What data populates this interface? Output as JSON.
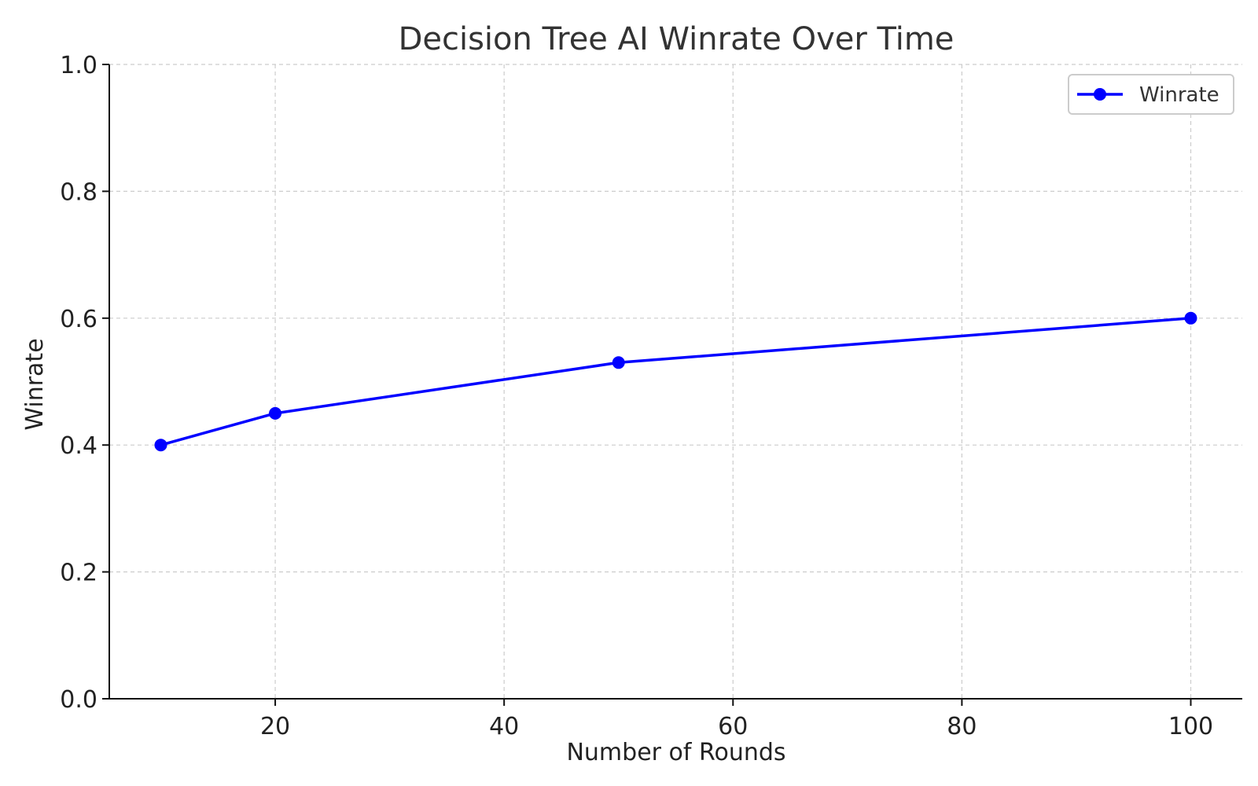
{
  "chart_data": {
    "type": "line",
    "title": "Decision Tree AI Winrate Over Time",
    "xlabel": "Number of Rounds",
    "ylabel": "Winrate",
    "xlim": [
      5.5,
      104.5
    ],
    "ylim": [
      0.0,
      1.0
    ],
    "x_ticks": [
      20,
      40,
      60,
      80,
      100
    ],
    "y_ticks": [
      0.0,
      0.2,
      0.4,
      0.6,
      0.8,
      1.0
    ],
    "x_tick_labels": [
      "20",
      "40",
      "60",
      "80",
      "100"
    ],
    "y_tick_labels": [
      "0.0",
      "0.2",
      "0.4",
      "0.6",
      "0.8",
      "1.0"
    ],
    "grid": true,
    "legend": {
      "position": "top-right",
      "entries": [
        "Winrate"
      ]
    },
    "series": [
      {
        "name": "Winrate",
        "color": "#0000ff",
        "marker": "circle",
        "x": [
          10,
          20,
          50,
          100
        ],
        "y": [
          0.4,
          0.45,
          0.53,
          0.6
        ]
      }
    ]
  }
}
